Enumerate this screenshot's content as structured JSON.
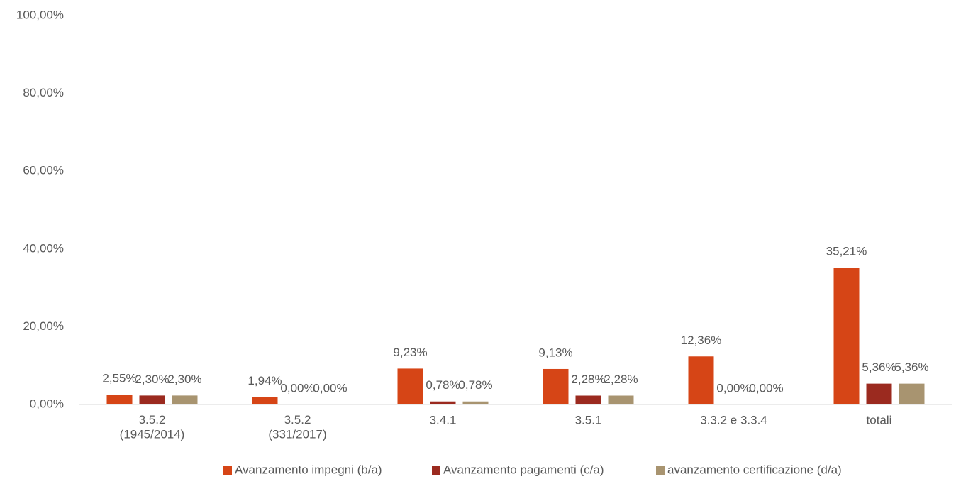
{
  "chart_data": {
    "type": "bar",
    "categories": [
      "3.5.2\n(1945/2014)",
      "3.5.2\n(331/2017)",
      "3.4.1",
      "3.5.1",
      "3.3.2 e 3.3.4",
      "totali"
    ],
    "series": [
      {
        "name": "Avanzamento impegni (b/a)",
        "color": "#d64516",
        "values": [
          2.55,
          1.94,
          9.23,
          9.13,
          12.36,
          35.21
        ],
        "value_labels": [
          "2,55%",
          "1,94%",
          "9,23%",
          "9,13%",
          "12,36%",
          "35,21%"
        ]
      },
      {
        "name": "Avanzamento pagamenti (c/a)",
        "color": "#9b2a1f",
        "values": [
          2.3,
          0.0,
          0.78,
          2.28,
          0.0,
          5.36
        ],
        "value_labels": [
          "2,30%",
          "0,00%",
          "0,78%",
          "2,28%",
          "0,00%",
          "5,36%"
        ]
      },
      {
        "name": "avanzamento certificazione (d/a)",
        "color": "#a89470",
        "values": [
          2.3,
          0.0,
          0.78,
          2.28,
          0.0,
          5.36
        ],
        "value_labels": [
          "2,30%",
          "0,00%",
          "0,78%",
          "2,28%",
          "0,00%",
          "5,36%"
        ]
      }
    ],
    "ylim": [
      0,
      100
    ],
    "yticks": [
      {
        "value": 0,
        "label": "0,00%"
      },
      {
        "value": 20,
        "label": "20,00%"
      },
      {
        "value": 40,
        "label": "40,00%"
      },
      {
        "value": 60,
        "label": "60,00%"
      },
      {
        "value": 80,
        "label": "80,00%"
      },
      {
        "value": 100,
        "label": "100,00%"
      }
    ],
    "legend": "bottom"
  }
}
